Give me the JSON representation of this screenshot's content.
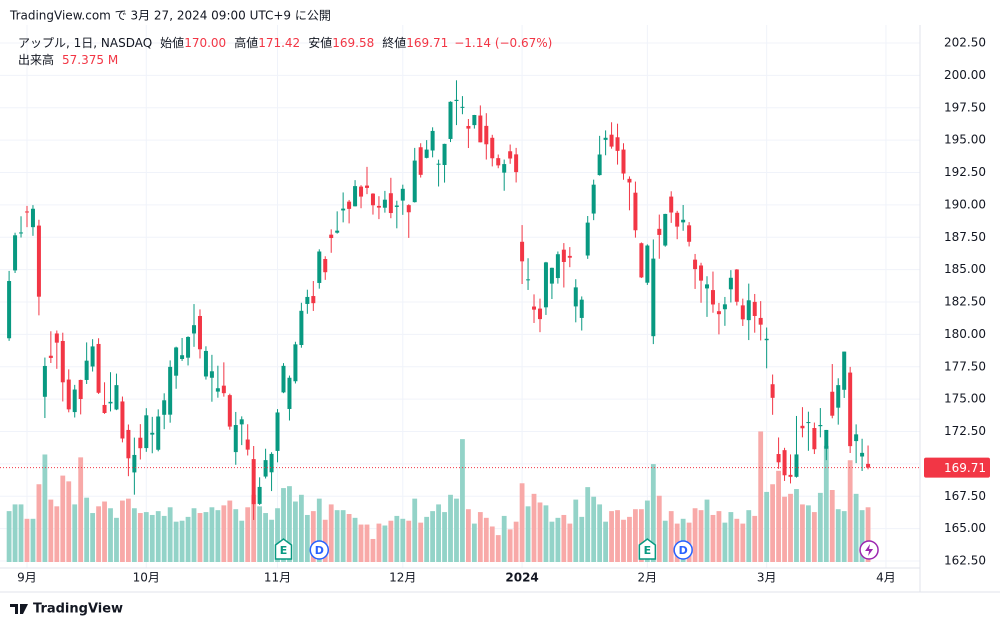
{
  "header": {
    "published": "TradingView.com で 3月 27, 2024 09:00 UTC+9 に公開"
  },
  "footer": {
    "brand": "TradingView"
  },
  "chart_data": {
    "type": "candlestick",
    "legend": {
      "symbol": "アップル, 1日, NASDAQ",
      "open_label": "始値",
      "open": "170.00",
      "high_label": "高値",
      "high": "171.42",
      "low_label": "安値",
      "low": "169.58",
      "close_label": "終値",
      "close": "169.71",
      "change": "−1.14 (−0.67%)",
      "volume_label": "出来高",
      "volume": "57.375 M"
    },
    "up_color": "#089981",
    "down_color": "#f23645",
    "volume_up_color": "#93d3c8",
    "volume_down_color": "#f8a9a8",
    "grid": true,
    "ylim": [
      162.5,
      202.5
    ],
    "yticks": [
      {
        "value": 162.5,
        "label": "162.50"
      },
      {
        "value": 165,
        "label": "165.00"
      },
      {
        "value": 167.5,
        "label": "167.50"
      },
      {
        "value": 170,
        "label": "170.00"
      },
      {
        "value": 172.5,
        "label": "172.50"
      },
      {
        "value": 175,
        "label": "175.00"
      },
      {
        "value": 177.5,
        "label": "177.50"
      },
      {
        "value": 180,
        "label": "180.00"
      },
      {
        "value": 182.5,
        "label": "182.50"
      },
      {
        "value": 185,
        "label": "185.00"
      },
      {
        "value": 187.5,
        "label": "187.50"
      },
      {
        "value": 190,
        "label": "190.00"
      },
      {
        "value": 192.5,
        "label": "192.50"
      },
      {
        "value": 195,
        "label": "195.00"
      },
      {
        "value": 197.5,
        "label": "197.50"
      },
      {
        "value": 200,
        "label": "200.00"
      },
      {
        "value": 202.5,
        "label": "202.50"
      }
    ],
    "xticks": [
      {
        "value": 3,
        "label": "9月"
      },
      {
        "value": 23,
        "label": "10月"
      },
      {
        "value": 45,
        "label": "11月"
      },
      {
        "value": 66,
        "label": "12月"
      },
      {
        "value": 86,
        "label": "2024"
      },
      {
        "value": 107,
        "label": "2月"
      },
      {
        "value": 127,
        "label": "3月"
      },
      {
        "value": 147,
        "label": "4月"
      }
    ],
    "events": [
      {
        "index": 46,
        "label": "E"
      },
      {
        "index": 52,
        "label": "D"
      },
      {
        "index": 107,
        "label": "E"
      },
      {
        "index": 113,
        "label": "D"
      }
    ],
    "ohlc": [
      [
        179.7,
        184.9,
        179.5,
        184.12
      ],
      [
        184.94,
        187.85,
        184.74,
        187.65
      ],
      [
        187.84,
        189.12,
        187.48,
        187.87
      ],
      [
        189.49,
        189.92,
        188.28,
        189.46
      ],
      [
        188.28,
        189.98,
        187.61,
        189.7
      ],
      [
        188.4,
        188.85,
        181.47,
        182.91
      ],
      [
        175.18,
        178.21,
        173.54,
        177.56
      ],
      [
        178.35,
        180.24,
        177.79,
        178.18
      ],
      [
        180.07,
        180.3,
        177.34,
        179.36
      ],
      [
        179.49,
        180.13,
        174.82,
        176.3
      ],
      [
        176.51,
        177.3,
        173.98,
        174.21
      ],
      [
        174,
        176.1,
        173.58,
        175.74
      ],
      [
        176.48,
        176.5,
        173.82,
        175.01
      ],
      [
        176.48,
        179.38,
        176.17,
        177.97
      ],
      [
        177.52,
        179.63,
        177.13,
        179.07
      ],
      [
        179.26,
        179.7,
        175.4,
        175.49
      ],
      [
        174.55,
        176.3,
        173.86,
        173.93
      ],
      [
        174.67,
        177.08,
        174.05,
        174.79
      ],
      [
        174.2,
        176.97,
        174.15,
        176.08
      ],
      [
        174.82,
        175.2,
        171.66,
        171.96
      ],
      [
        172.62,
        173.04,
        169.05,
        170.43
      ],
      [
        169.34,
        172.03,
        167.62,
        170.69
      ],
      [
        172.02,
        173.07,
        170.34,
        171.21
      ],
      [
        171.22,
        174.3,
        170.93,
        173.75
      ],
      [
        172.26,
        173.63,
        170.82,
        172.4
      ],
      [
        171.09,
        174.21,
        170.97,
        173.66
      ],
      [
        173.79,
        175.45,
        172.68,
        174.91
      ],
      [
        173.8,
        177.99,
        173.18,
        177.49
      ],
      [
        176.81,
        179.05,
        175.8,
        178.99
      ],
      [
        178.1,
        179.72,
        177.95,
        178.39
      ],
      [
        178.2,
        179.85,
        177.6,
        179.8
      ],
      [
        180.07,
        182.34,
        179.04,
        180.71
      ],
      [
        181.42,
        181.93,
        178.14,
        178.85
      ],
      [
        176.75,
        179.08,
        176.51,
        178.72
      ],
      [
        176.65,
        178.42,
        174.8,
        177.15
      ],
      [
        175.58,
        177.58,
        175.11,
        175.84
      ],
      [
        176.04,
        177.84,
        175.19,
        175.46
      ],
      [
        175.31,
        175.42,
        172.64,
        172.88
      ],
      [
        170.91,
        174.01,
        169.93,
        173
      ],
      [
        173.05,
        173.67,
        171.45,
        173.44
      ],
      [
        171.88,
        173.06,
        170.65,
        171.1
      ],
      [
        170.37,
        171.38,
        165.67,
        166.89
      ],
      [
        166.91,
        168.96,
        166.83,
        168.22
      ],
      [
        169.02,
        171.17,
        168.87,
        170.29
      ],
      [
        169.35,
        170.9,
        167.9,
        170.77
      ],
      [
        171,
        174.23,
        170.12,
        173.97
      ],
      [
        175.52,
        177.78,
        175.46,
        177.57
      ],
      [
        174.24,
        176.82,
        173.35,
        176.65
      ],
      [
        176.38,
        179.43,
        176.21,
        179.23
      ],
      [
        179.18,
        182.44,
        178.97,
        181.82
      ],
      [
        182.35,
        183.45,
        181.59,
        182.89
      ],
      [
        182.96,
        184.12,
        181.81,
        182.41
      ],
      [
        183.97,
        186.57,
        183.53,
        186.4
      ],
      [
        185.82,
        186.03,
        184.21,
        184.8
      ],
      [
        187.7,
        188.11,
        186.3,
        187.44
      ],
      [
        187.85,
        189.5,
        187.78,
        188.01
      ],
      [
        189.57,
        190.96,
        188.65,
        189.71
      ],
      [
        190.25,
        190.38,
        188.57,
        189.69
      ],
      [
        189.89,
        191.91,
        189.88,
        191.45
      ],
      [
        191.41,
        191.52,
        189.74,
        190.64
      ],
      [
        191.49,
        192.93,
        190.83,
        191.31
      ],
      [
        190.87,
        190.9,
        189.25,
        189.97
      ],
      [
        189.92,
        190.67,
        188.9,
        189.79
      ],
      [
        189.78,
        191.08,
        189.4,
        190.4
      ],
      [
        190.9,
        192.09,
        188.97,
        189.37
      ],
      [
        189.84,
        190.32,
        188.19,
        189.95
      ],
      [
        190.33,
        191.56,
        189.23,
        191.24
      ],
      [
        189.98,
        190.05,
        187.45,
        189.43
      ],
      [
        190.21,
        194.4,
        190.18,
        193.42
      ],
      [
        194.45,
        194.76,
        192.11,
        192.32
      ],
      [
        193.63,
        195,
        193.59,
        194.27
      ],
      [
        194.2,
        195.99,
        193.67,
        195.71
      ],
      [
        193.11,
        193.49,
        191.42,
        193.18
      ],
      [
        193.08,
        194.72,
        191.72,
        194.71
      ],
      [
        195.09,
        198,
        194.85,
        197.96
      ],
      [
        198.02,
        199.62,
        196.16,
        198.11
      ],
      [
        197.53,
        198.4,
        197,
        197.57
      ],
      [
        196.09,
        196.63,
        194.39,
        195.89
      ],
      [
        196.16,
        196.95,
        195.89,
        196.94
      ],
      [
        196.9,
        197.68,
        194.83,
        194.83
      ],
      [
        196.1,
        197.08,
        193.5,
        194.68
      ],
      [
        195.18,
        195.41,
        192.97,
        193.6
      ],
      [
        193.61,
        193.89,
        192.83,
        193.05
      ],
      [
        192.49,
        193.5,
        191.09,
        193.15
      ],
      [
        194.14,
        194.66,
        193.17,
        193.58
      ],
      [
        193.9,
        194.4,
        191.73,
        192.53
      ],
      [
        187.15,
        188.44,
        183.89,
        185.64
      ],
      [
        184.22,
        185.88,
        183.43,
        184.25
      ],
      [
        182.15,
        183.09,
        180.88,
        181.91
      ],
      [
        181.99,
        182.76,
        180.17,
        181.18
      ],
      [
        182.09,
        185.6,
        181.5,
        185.56
      ],
      [
        183.92,
        185.15,
        182.73,
        185.14
      ],
      [
        184.35,
        186.4,
        183.92,
        186.19
      ],
      [
        186.54,
        187.05,
        183.62,
        185.59
      ],
      [
        186.06,
        186.74,
        185.19,
        185.92
      ],
      [
        182.16,
        184.26,
        180.93,
        183.63
      ],
      [
        181.27,
        182.93,
        180.3,
        182.68
      ],
      [
        186.09,
        189.14,
        185.83,
        188.63
      ],
      [
        189.33,
        191.95,
        188.82,
        191.56
      ],
      [
        192.3,
        195.33,
        192.26,
        193.89
      ],
      [
        195.02,
        195.75,
        193.83,
        195.18
      ],
      [
        195.42,
        196.38,
        194.34,
        194.5
      ],
      [
        195.22,
        196.27,
        193.11,
        194.17
      ],
      [
        194.27,
        194.76,
        191.94,
        192.42
      ],
      [
        192.01,
        192.2,
        189.58,
        191.73
      ],
      [
        190.94,
        191.8,
        187.47,
        188.04
      ],
      [
        187.04,
        187.1,
        184.35,
        184.4
      ],
      [
        183.99,
        186.95,
        183.82,
        186.86
      ],
      [
        179.86,
        187.33,
        179.25,
        185.85
      ],
      [
        188.15,
        189.25,
        185.84,
        187.68
      ],
      [
        186.86,
        189.31,
        186.77,
        189.3
      ],
      [
        190.64,
        191.05,
        188.61,
        189.41
      ],
      [
        189.39,
        189.54,
        187.35,
        188.32
      ],
      [
        188.65,
        189.99,
        188,
        188.85
      ],
      [
        188.42,
        188.67,
        186.79,
        187.15
      ],
      [
        185.77,
        186.21,
        183.51,
        185.04
      ],
      [
        185.32,
        185.53,
        182.44,
        184.15
      ],
      [
        183.55,
        184.49,
        181.35,
        183.86
      ],
      [
        183.42,
        184.85,
        181.67,
        182.31
      ],
      [
        181.79,
        182.43,
        180,
        181.56
      ],
      [
        181.94,
        182.89,
        180.66,
        182.32
      ],
      [
        183.48,
        184.96,
        182.46,
        184.37
      ],
      [
        185.01,
        185.04,
        182.23,
        182.52
      ],
      [
        182.24,
        182.76,
        180.65,
        181.16
      ],
      [
        181.1,
        183.92,
        179.56,
        182.63
      ],
      [
        182.51,
        183.12,
        180.13,
        181.42
      ],
      [
        181.27,
        182.57,
        179.53,
        180.75
      ],
      [
        179.55,
        180.53,
        177.38,
        179.66
      ],
      [
        176.15,
        176.9,
        173.79,
        175.1
      ],
      [
        170.76,
        172.04,
        169.62,
        170.12
      ],
      [
        171.06,
        171.24,
        168.68,
        169.12
      ],
      [
        169.15,
        170.73,
        168.49,
        169
      ],
      [
        169,
        173.7,
        168.94,
        170.73
      ],
      [
        172.94,
        174.38,
        172.05,
        172.75
      ],
      [
        173.15,
        174.03,
        171.01,
        173.23
      ],
      [
        172.77,
        173.19,
        170.76,
        171.13
      ],
      [
        172.91,
        174.31,
        172.05,
        173
      ],
      [
        171.17,
        172.62,
        170.29,
        172.62
      ],
      [
        175.57,
        177.71,
        173.52,
        173.72
      ],
      [
        174.34,
        176.61,
        173.03,
        176.08
      ],
      [
        175.72,
        178.67,
        175.09,
        178.67
      ],
      [
        177.05,
        177.49,
        170.84,
        171.37
      ],
      [
        171.76,
        173.05,
        170.06,
        172.28
      ],
      [
        170.57,
        171.94,
        169.45,
        170.85
      ],
      [
        170,
        171.42,
        169.58,
        169.71
      ]
    ],
    "volume": [
      53,
      60,
      60,
      45,
      45,
      81,
      112,
      65,
      58,
      90,
      84,
      60,
      109,
      67,
      51,
      58,
      63,
      56,
      46,
      64,
      66,
      56,
      51,
      52,
      49,
      53,
      48,
      57,
      42,
      43,
      47,
      56,
      51,
      52,
      57,
      54,
      59,
      64,
      55,
      43,
      57,
      70,
      58,
      51,
      44,
      56,
      77,
      79,
      63,
      70,
      49,
      53,
      66,
      44,
      60,
      54,
      54,
      50,
      46,
      39,
      39,
      24,
      40,
      38,
      43,
      48,
      45,
      43,
      66,
      41,
      47,
      53,
      60,
      52,
      70,
      66,
      128,
      55,
      40,
      52,
      46,
      37,
      28,
      48,
      34,
      42,
      82,
      58,
      71,
      62,
      59,
      42,
      46,
      49,
      40,
      65,
      47,
      78,
      68,
      60,
      42,
      53,
      54,
      44,
      47,
      55,
      55,
      64,
      102,
      69,
      43,
      53,
      40,
      45,
      41,
      56,
      54,
      65,
      49,
      53,
      41,
      52,
      45,
      40,
      54,
      48,
      136,
      73,
      81,
      95,
      68,
      71,
      76,
      60,
      59,
      52,
      72,
      121,
      75,
      55,
      53,
      106,
      71,
      54,
      57
    ]
  }
}
